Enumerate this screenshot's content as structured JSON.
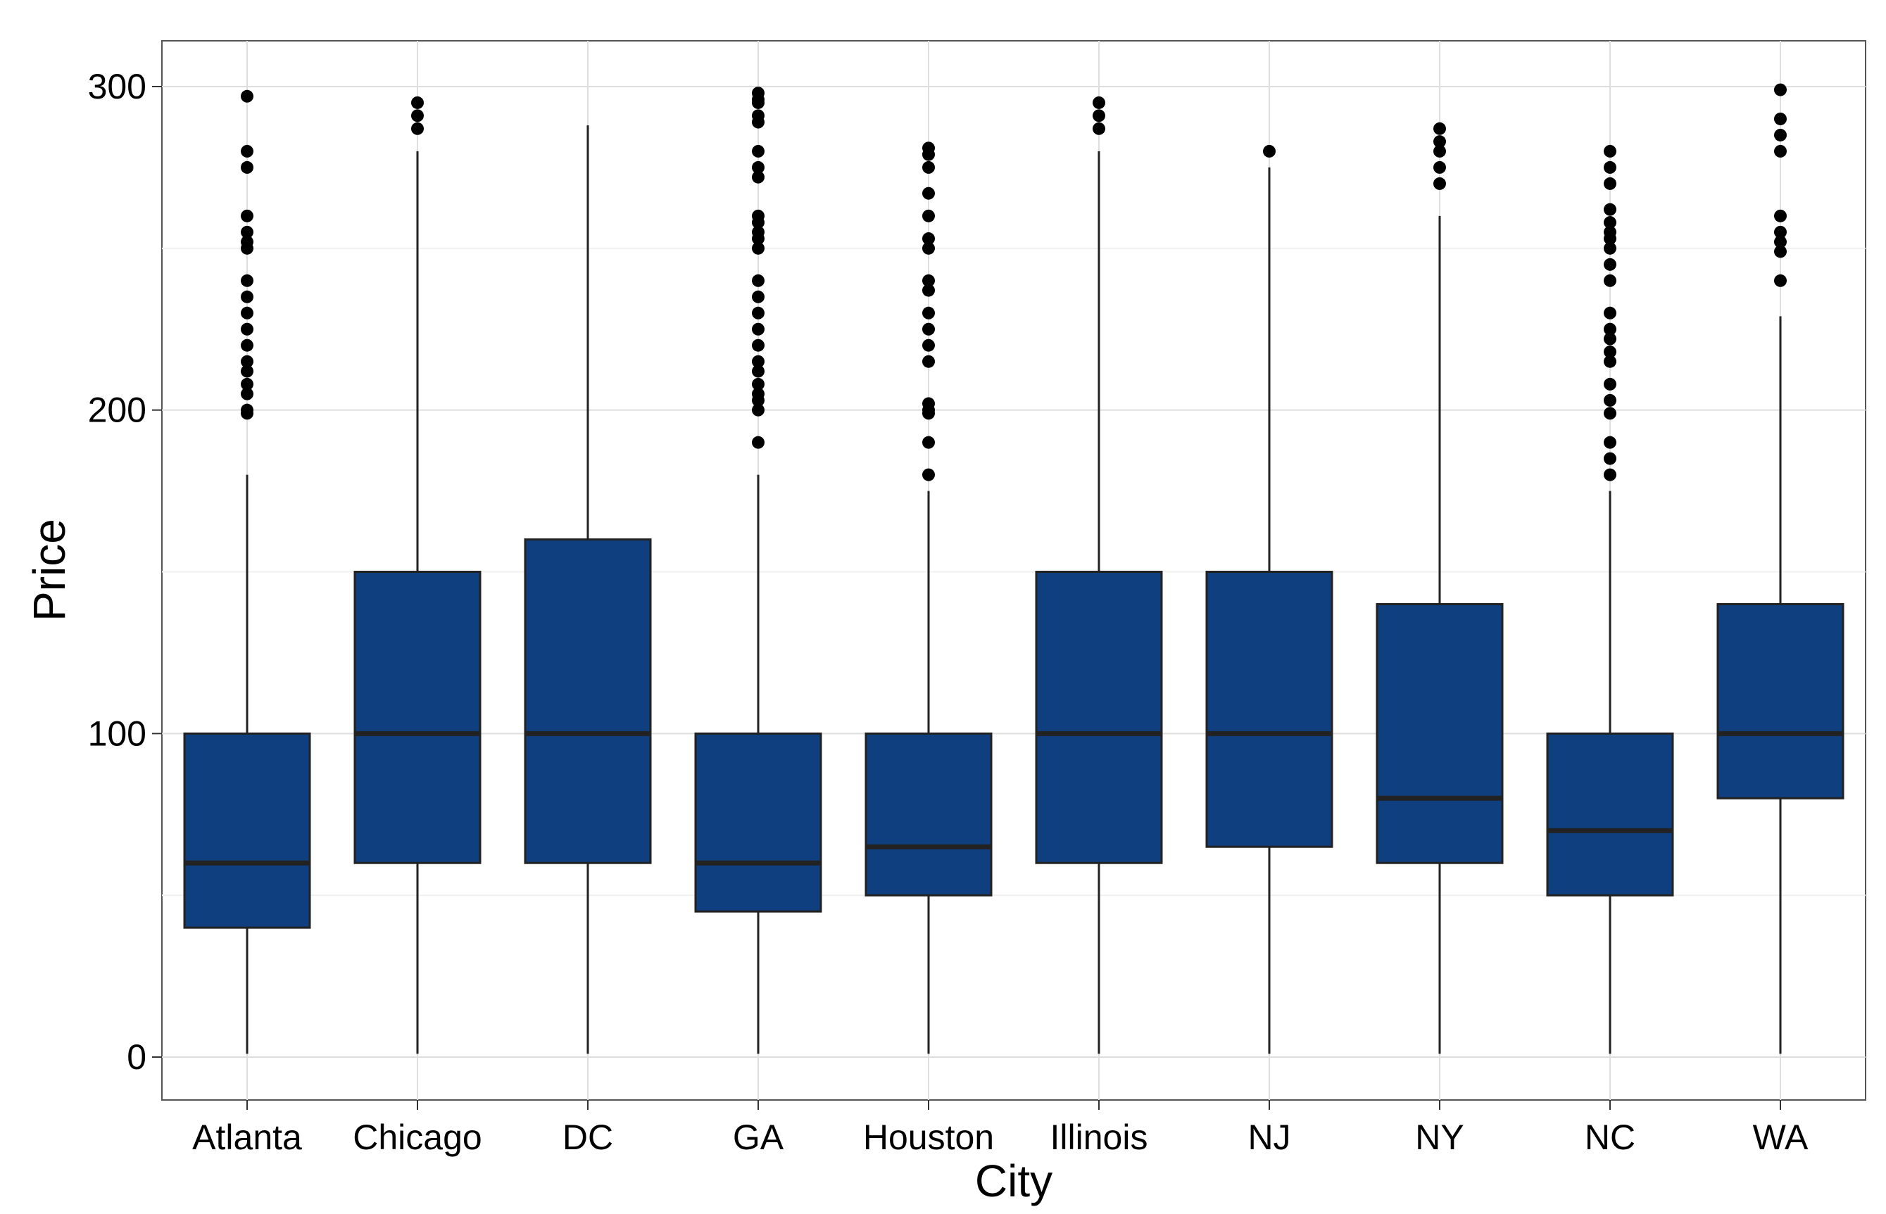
{
  "chart_data": {
    "type": "boxplot",
    "title": "",
    "xlabel": "City",
    "ylabel": "Price",
    "ylim": [
      -13,
      314
    ],
    "yticks": [
      0,
      100,
      200,
      300
    ],
    "grid": true,
    "legend": "none",
    "box_color": "#0f3f7f",
    "categories": [
      "Atlanta",
      "Chicago",
      "DC",
      "GA",
      "Houston",
      "Illinois",
      "NJ",
      "NY",
      "NC",
      "WA"
    ],
    "boxes": [
      {
        "category": "Atlanta",
        "whisker_low": 1,
        "q1": 40,
        "median": 60,
        "q3": 100,
        "whisker_high": 180,
        "outliers": [
          199,
          200,
          205,
          208,
          212,
          215,
          220,
          225,
          230,
          235,
          240,
          250,
          252,
          255,
          260,
          275,
          280,
          297
        ]
      },
      {
        "category": "Chicago",
        "whisker_low": 1,
        "q1": 60,
        "median": 100,
        "q3": 150,
        "whisker_high": 280,
        "outliers": [
          287,
          291,
          295
        ]
      },
      {
        "category": "DC",
        "whisker_low": 1,
        "q1": 60,
        "median": 100,
        "q3": 160,
        "whisker_high": 288,
        "outliers": []
      },
      {
        "category": "GA",
        "whisker_low": 1,
        "q1": 45,
        "median": 60,
        "q3": 100,
        "whisker_high": 180,
        "outliers": [
          190,
          200,
          203,
          205,
          208,
          212,
          215,
          220,
          225,
          230,
          235,
          240,
          250,
          253,
          255,
          258,
          260,
          272,
          275,
          280,
          289,
          291,
          295,
          296,
          298
        ]
      },
      {
        "category": "Houston",
        "whisker_low": 1,
        "q1": 50,
        "median": 65,
        "q3": 100,
        "whisker_high": 175,
        "outliers": [
          180,
          190,
          199,
          200,
          202,
          215,
          220,
          225,
          230,
          237,
          240,
          250,
          253,
          260,
          267,
          275,
          279,
          281
        ]
      },
      {
        "category": "Illinois",
        "whisker_low": 1,
        "q1": 60,
        "median": 100,
        "q3": 150,
        "whisker_high": 280,
        "outliers": [
          287,
          291,
          295
        ]
      },
      {
        "category": "NJ",
        "whisker_low": 1,
        "q1": 65,
        "median": 100,
        "q3": 150,
        "whisker_high": 275,
        "outliers": [
          280
        ]
      },
      {
        "category": "NY",
        "whisker_low": 1,
        "q1": 60,
        "median": 80,
        "q3": 140,
        "whisker_high": 260,
        "outliers": [
          270,
          275,
          280,
          283,
          287
        ]
      },
      {
        "category": "NC",
        "whisker_low": 1,
        "q1": 50,
        "median": 70,
        "q3": 100,
        "whisker_high": 175,
        "outliers": [
          180,
          185,
          190,
          199,
          203,
          208,
          215,
          218,
          222,
          225,
          230,
          240,
          245,
          250,
          253,
          255,
          258,
          262,
          270,
          275,
          280
        ]
      },
      {
        "category": "WA",
        "whisker_low": 1,
        "q1": 80,
        "median": 100,
        "q3": 140,
        "whisker_high": 229,
        "outliers": [
          240,
          249,
          252,
          255,
          260,
          280,
          285,
          290,
          299
        ]
      }
    ]
  }
}
